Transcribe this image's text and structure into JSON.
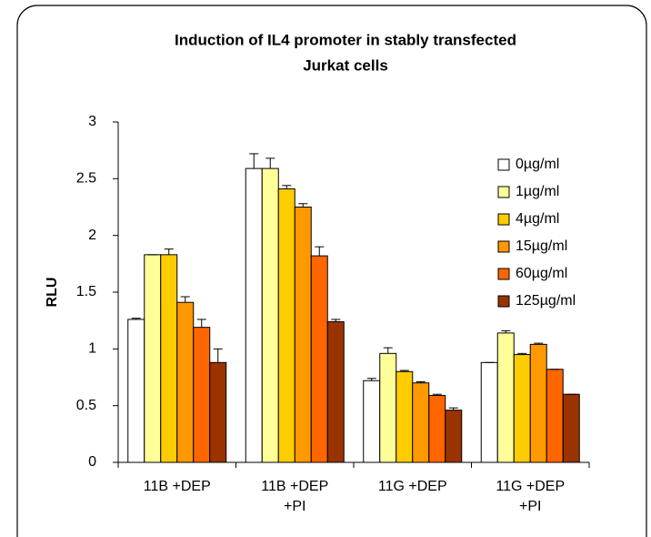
{
  "chart_data": {
    "type": "bar",
    "title": [
      "Induction of IL4 promoter in stably transfected",
      "Jurkat cells"
    ],
    "y_label": "RLU",
    "categories": [
      [
        "11B +DEP"
      ],
      [
        "11B +DEP",
        "+PI"
      ],
      [
        "11G +DEP"
      ],
      [
        "11G +DEP",
        "+PI"
      ]
    ],
    "series": [
      {
        "name": "0µg/ml",
        "color": "#ffffff",
        "values": [
          1.26,
          2.59,
          0.72,
          0.88
        ],
        "errors": [
          0.01,
          0.13,
          0.02,
          0
        ]
      },
      {
        "name": "1µg/ml",
        "color": "#ffff99",
        "values": [
          1.83,
          2.59,
          0.96,
          1.14
        ],
        "errors": [
          0,
          0.09,
          0.05,
          0.02
        ]
      },
      {
        "name": "4µg/ml",
        "color": "#ffcc00",
        "values": [
          1.83,
          2.41,
          0.8,
          0.95
        ],
        "errors": [
          0.05,
          0.03,
          0.01,
          0.01
        ]
      },
      {
        "name": "15µg/ml",
        "color": "#ff9900",
        "values": [
          1.41,
          2.25,
          0.7,
          1.04
        ],
        "errors": [
          0.05,
          0.03,
          0.01,
          0.01
        ]
      },
      {
        "name": "60µg/ml",
        "color": "#ff6600",
        "values": [
          1.19,
          1.82,
          0.59,
          0.82
        ],
        "errors": [
          0.07,
          0.08,
          0.01,
          0
        ]
      },
      {
        "name": "125µg/ml",
        "color": "#993300",
        "values": [
          0.88,
          1.24,
          0.46,
          0.6
        ],
        "errors": [
          0.12,
          0.02,
          0.02,
          0
        ]
      }
    ],
    "ylim": [
      0,
      3
    ],
    "yticks": [
      0,
      0.5,
      1,
      1.5,
      2,
      2.5,
      3
    ],
    "grid": false,
    "legend": "right"
  }
}
